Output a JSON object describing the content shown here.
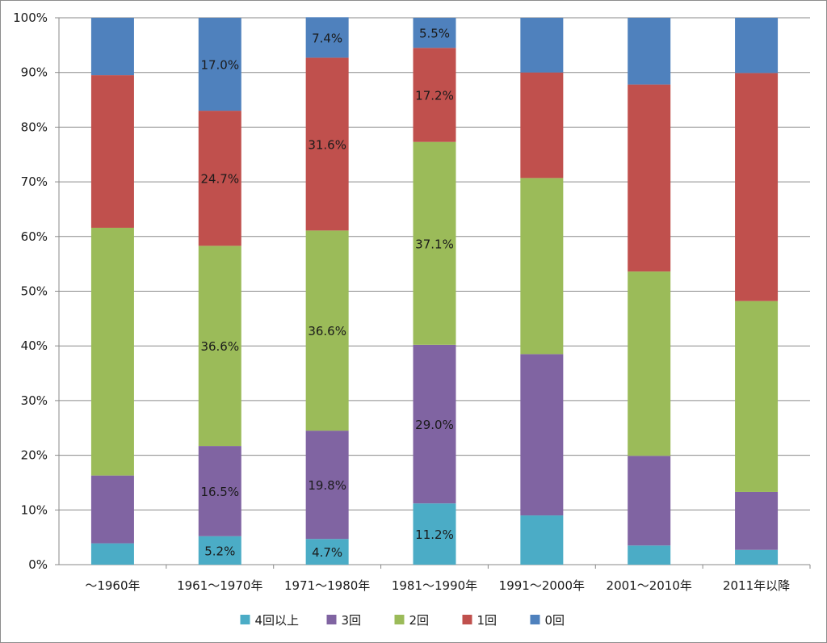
{
  "chart_data": {
    "type": "bar",
    "stacked": true,
    "percent": true,
    "categories": [
      "～1960年",
      "1961～1970年",
      "1971～1980年",
      "1981～1990年",
      "1991～2000年",
      "2001～2010年",
      "2011年以降"
    ],
    "series": [
      {
        "name": "4回以上",
        "color": "#4bacc6",
        "values": [
          3.9,
          5.2,
          4.7,
          11.2,
          9.0,
          3.5,
          2.7
        ],
        "labels": [
          "",
          "5.2%",
          "4.7%",
          "11.2%",
          "",
          "",
          ""
        ]
      },
      {
        "name": "3回",
        "color": "#8064a2",
        "values": [
          12.4,
          16.5,
          19.8,
          29.0,
          29.5,
          16.4,
          10.6
        ],
        "labels": [
          "",
          "16.5%",
          "19.8%",
          "29.0%",
          "",
          "",
          ""
        ]
      },
      {
        "name": "2回",
        "color": "#9bbb59",
        "values": [
          45.3,
          36.6,
          36.6,
          37.1,
          32.2,
          33.7,
          34.9
        ],
        "labels": [
          "",
          "36.6%",
          "36.6%",
          "37.1%",
          "",
          "",
          ""
        ]
      },
      {
        "name": "1回",
        "color": "#c0504d",
        "values": [
          27.9,
          24.7,
          31.6,
          17.2,
          19.3,
          34.2,
          41.7
        ],
        "labels": [
          "",
          "24.7%",
          "31.6%",
          "17.2%",
          "",
          "",
          ""
        ]
      },
      {
        "name": "0回",
        "color": "#4f81bd",
        "values": [
          10.5,
          17.0,
          7.4,
          5.5,
          10.0,
          12.2,
          10.1
        ],
        "labels": [
          "",
          "17.0%",
          "7.4%",
          "5.5%",
          "",
          "",
          ""
        ]
      }
    ],
    "yticks": [
      "0%",
      "10%",
      "20%",
      "30%",
      "40%",
      "50%",
      "60%",
      "70%",
      "80%",
      "90%",
      "100%"
    ],
    "ylim": [
      0,
      100
    ],
    "grid": true,
    "legend": "bottom"
  }
}
